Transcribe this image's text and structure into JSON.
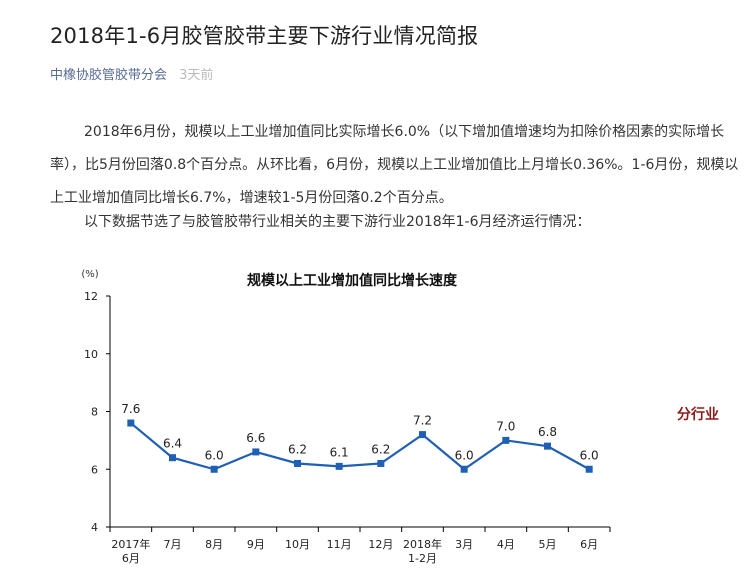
{
  "article": {
    "title": "2018年1-6月胶管胶带主要下游行业情况简报",
    "author": "中橡协胶管胶带分会",
    "time": "3天前",
    "paragraph1": "2018年6月份，规模以上工业增加值同比实际增长6.0%（以下增加值增速均为扣除价格因素的实际增长率），比5月份回落0.8个百分点。从环比看，6月份，规模以上工业增加值比上月增长0.36%。1-6月份，规模以上工业增加值同比增长6.7%，增速较1-5月份回落0.2个百分点。",
    "paragraph2": "以下数据节选了与胶管胶带行业相关的主要下游行业2018年1-6月经济运行情况：",
    "side_tag": "分行业"
  },
  "chart_data": {
    "type": "line",
    "title": "规模以上工业增加值同比增长速度",
    "unit_label": "(%)",
    "categories": [
      [
        "2017年",
        "6月"
      ],
      [
        "7月"
      ],
      [
        "8月"
      ],
      [
        "9月"
      ],
      [
        "10月"
      ],
      [
        "11月"
      ],
      [
        "12月"
      ],
      [
        "2018年",
        "1-2月"
      ],
      [
        "3月"
      ],
      [
        "4月"
      ],
      [
        "5月"
      ],
      [
        "6月"
      ]
    ],
    "values": [
      7.6,
      6.4,
      6.0,
      6.6,
      6.2,
      6.1,
      6.2,
      7.2,
      6.0,
      7.0,
      6.8,
      6.0
    ],
    "value_labels": [
      "7.6",
      "6.4",
      "6.0",
      "6.6",
      "6.2",
      "6.1",
      "6.2",
      "7.2",
      "6.0",
      "7.0",
      "6.8",
      "6.0"
    ],
    "ylim": [
      4,
      12
    ],
    "yticks": [
      4,
      6,
      8,
      10,
      12
    ],
    "ytick_labels": [
      "4",
      "6",
      "8",
      "10",
      "12"
    ],
    "grid": false,
    "line_color": "#1f5fb4",
    "marker_color": "#1f5fb4"
  }
}
